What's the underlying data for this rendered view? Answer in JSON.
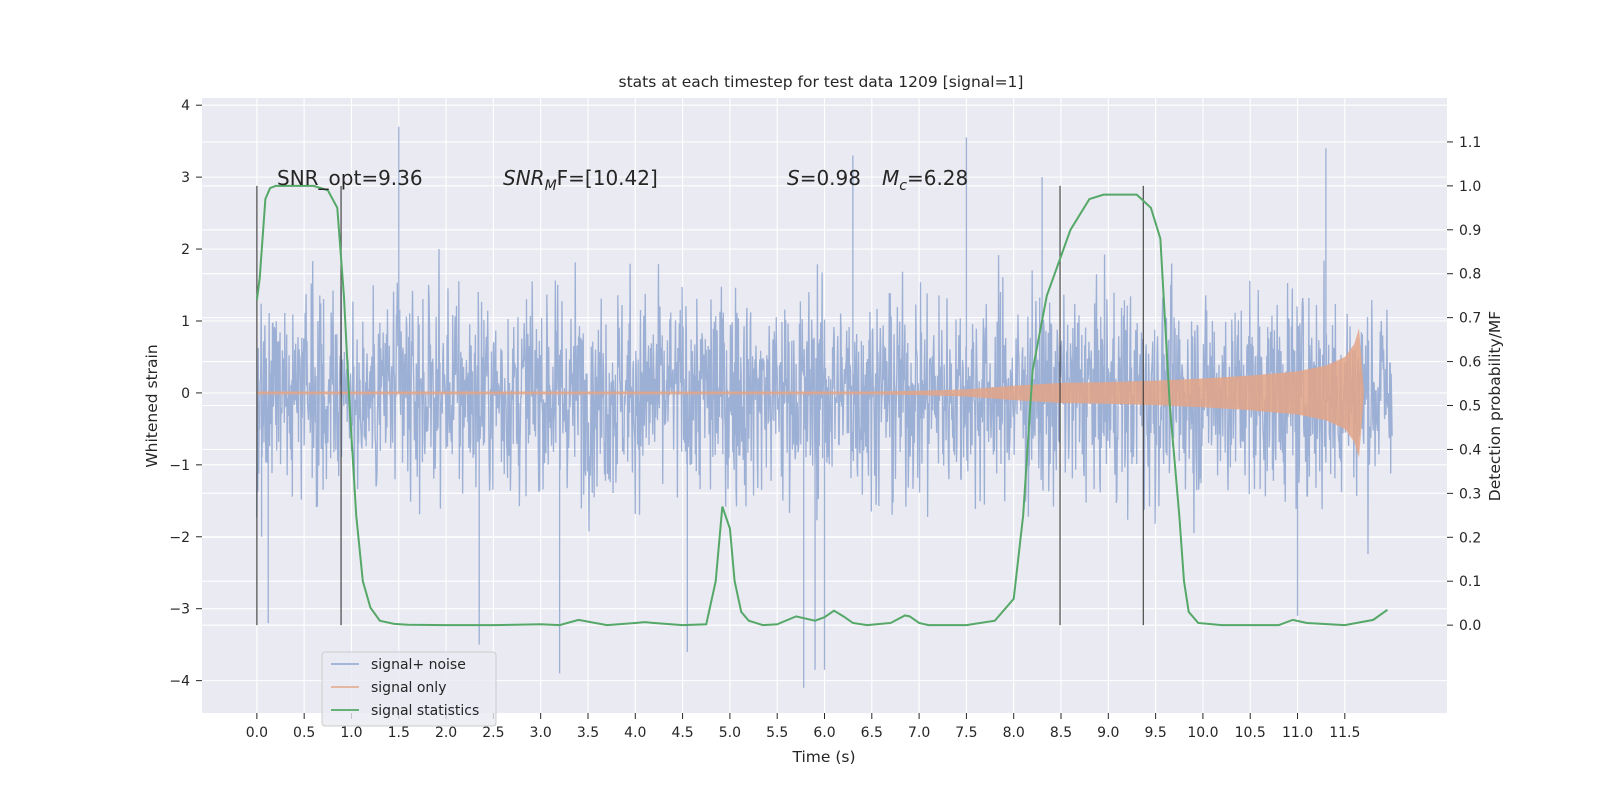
{
  "chart_data": {
    "type": "line",
    "title": "stats at each timestep for test data 1209 [signal=1]",
    "xlabel": "Time (s)",
    "ylabel_left": "Whitened strain",
    "ylabel_right": "Detection probability/MF",
    "xlim": [
      -0.58,
      12.58
    ],
    "ylim_left": [
      -4.45,
      4.1
    ],
    "ylim_right": [
      -0.2,
      1.2
    ],
    "x_ticks": [
      "0.0",
      "0.5",
      "1.0",
      "1.5",
      "2.0",
      "2.5",
      "3.0",
      "3.5",
      "4.0",
      "4.5",
      "5.0",
      "5.5",
      "6.0",
      "6.5",
      "7.0",
      "7.5",
      "8.0",
      "8.5",
      "9.0",
      "9.5",
      "10.0",
      "10.5",
      "11.0",
      "11.5"
    ],
    "y_ticks_left": [
      "−4",
      "−3",
      "−2",
      "−1",
      "0",
      "1",
      "2",
      "3",
      "4"
    ],
    "y_ticks_right": [
      "0.0",
      "0.1",
      "0.2",
      "0.3",
      "0.4",
      "0.5",
      "0.6",
      "0.7",
      "0.8",
      "0.9",
      "1.0",
      "1.1"
    ],
    "grid": true,
    "legend_position": "lower-left",
    "annotations": {
      "snr_opt": "SNR_opt=9.36",
      "snr_mf_prefix": "SNR",
      "snr_mf_sub": "M",
      "snr_mf_suffix": "F=[10.42]",
      "s_prefix": "S",
      "s_value": "=0.98",
      "mc_prefix": "M",
      "mc_sub": "c",
      "mc_value": "=6.28"
    },
    "vertical_markers": [
      0.0,
      0.89,
      8.49,
      9.37
    ],
    "noise_series": {
      "name": "signal+ noise",
      "color": "#8ea5cf",
      "x_range": [
        0.0,
        12.0
      ],
      "typical_amplitude": 2.3,
      "notable_extremes": [
        {
          "x": 0.05,
          "y": -2.0
        },
        {
          "x": 0.12,
          "y": -3.2
        },
        {
          "x": 1.5,
          "y": 3.7
        },
        {
          "x": 2.35,
          "y": -3.5
        },
        {
          "x": 3.2,
          "y": -3.9
        },
        {
          "x": 4.55,
          "y": -3.6
        },
        {
          "x": 5.78,
          "y": -4.1
        },
        {
          "x": 5.9,
          "y": -3.85
        },
        {
          "x": 6.0,
          "y": -3.85
        },
        {
          "x": 6.3,
          "y": 3.3
        },
        {
          "x": 7.5,
          "y": 3.55
        },
        {
          "x": 8.3,
          "y": 3.0
        },
        {
          "x": 11.0,
          "y": -3.1
        },
        {
          "x": 11.3,
          "y": 3.4
        }
      ]
    },
    "signal_series": {
      "name": "signal only",
      "color": "#e3a586",
      "x": [
        0.0,
        6.5,
        7.0,
        7.5,
        8.0,
        8.5,
        9.0,
        9.5,
        10.0,
        10.5,
        11.0,
        11.3,
        11.5,
        11.6,
        11.65,
        11.7
      ],
      "amp": [
        0.02,
        0.02,
        0.03,
        0.05,
        0.1,
        0.14,
        0.15,
        0.17,
        0.2,
        0.24,
        0.3,
        0.38,
        0.5,
        0.68,
        0.9,
        0.05
      ]
    },
    "stats_series": {
      "name": "signal statistics",
      "color": "#55a868",
      "x": [
        0.0,
        0.03,
        0.09,
        0.14,
        0.2,
        0.3,
        0.5,
        0.6,
        0.75,
        0.85,
        0.92,
        0.98,
        1.05,
        1.12,
        1.2,
        1.3,
        1.45,
        1.6,
        2.0,
        2.5,
        3.0,
        3.2,
        3.4,
        3.5,
        3.7,
        4.0,
        4.1,
        4.2,
        4.5,
        4.75,
        4.85,
        4.92,
        5.0,
        5.05,
        5.12,
        5.2,
        5.35,
        5.5,
        5.7,
        5.9,
        6.0,
        6.1,
        6.2,
        6.3,
        6.45,
        6.7,
        6.85,
        6.9,
        7.0,
        7.1,
        7.5,
        7.8,
        8.0,
        8.1,
        8.2,
        8.35,
        8.45,
        8.6,
        8.8,
        8.95,
        9.3,
        9.45,
        9.55,
        9.65,
        9.75,
        9.8,
        9.85,
        9.95,
        10.2,
        10.8,
        10.95,
        11.1,
        11.5,
        11.8,
        11.95
      ],
      "y": [
        0.74,
        0.79,
        0.97,
        0.995,
        1.0,
        1.0,
        1.0,
        1.0,
        0.99,
        0.95,
        0.75,
        0.5,
        0.25,
        0.1,
        0.04,
        0.01,
        0.003,
        0.001,
        0.0,
        0.0,
        0.002,
        0.0,
        0.012,
        0.008,
        0.0,
        0.005,
        0.007,
        0.005,
        0.0,
        0.002,
        0.1,
        0.27,
        0.22,
        0.1,
        0.03,
        0.01,
        0.0,
        0.002,
        0.02,
        0.01,
        0.018,
        0.033,
        0.02,
        0.005,
        0.0,
        0.005,
        0.022,
        0.02,
        0.005,
        0.0,
        0.0,
        0.01,
        0.06,
        0.25,
        0.58,
        0.75,
        0.81,
        0.9,
        0.97,
        0.98,
        0.98,
        0.95,
        0.88,
        0.5,
        0.25,
        0.1,
        0.03,
        0.005,
        0.0,
        0.0,
        0.012,
        0.005,
        0.0,
        0.012,
        0.035
      ]
    }
  }
}
